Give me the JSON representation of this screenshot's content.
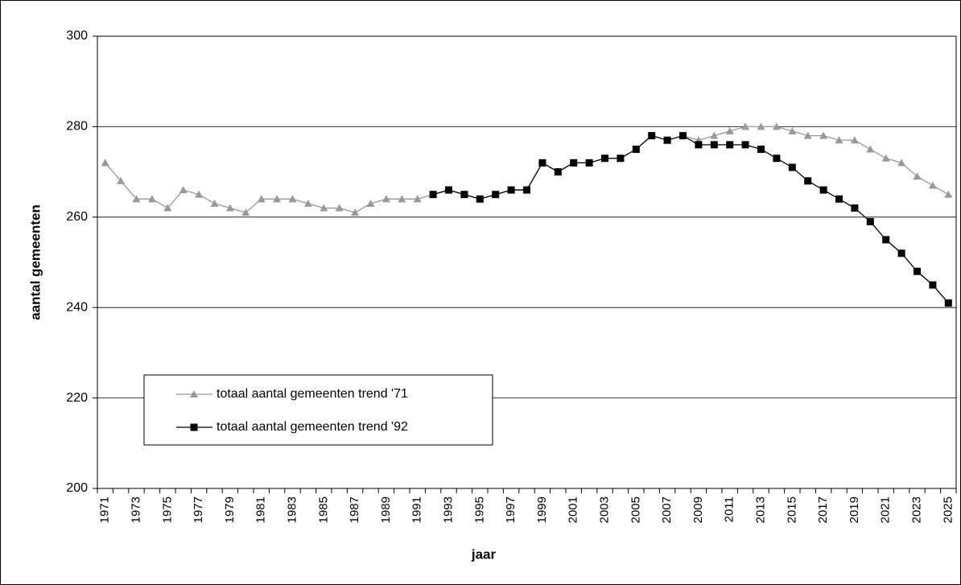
{
  "chart_data": {
    "type": "line",
    "x_label": "jaar",
    "y_label": "aantal gemeenten",
    "categories": [
      "1971",
      null,
      "1973",
      null,
      "1975",
      null,
      "1977",
      null,
      "1979",
      null,
      "1981",
      null,
      "1983",
      null,
      "1985",
      null,
      "1987",
      null,
      "1989",
      null,
      "1991",
      null,
      "1993",
      null,
      "1995",
      null,
      "1997",
      null,
      "1999",
      null,
      "2001",
      null,
      "2003",
      null,
      "2005",
      null,
      "2007",
      null,
      "2009",
      null,
      "2011",
      null,
      "2013",
      null,
      "2015",
      null,
      "2017",
      null,
      "2019",
      null,
      "2021",
      null,
      "2023",
      null,
      "2025"
    ],
    "series": [
      {
        "name": "totaal aantal gemeenten trend '71",
        "color": "#999999",
        "marker": "triangle",
        "values": [
          272,
          268,
          264,
          264,
          262,
          266,
          265,
          263,
          262,
          261,
          264,
          264,
          264,
          263,
          262,
          262,
          261,
          263,
          264,
          264,
          264,
          265,
          266,
          265,
          264,
          265,
          266,
          266,
          272,
          270,
          272,
          272,
          273,
          273,
          275,
          278,
          277,
          278,
          277,
          278,
          279,
          280,
          280,
          280,
          279,
          278,
          278,
          277,
          277,
          275,
          273,
          272,
          269,
          267,
          265
        ]
      },
      {
        "name": "totaal aantal gemeenten trend '92",
        "color": "#000000",
        "marker": "square",
        "values": [
          null,
          null,
          null,
          null,
          null,
          null,
          null,
          null,
          null,
          null,
          null,
          null,
          null,
          null,
          null,
          null,
          null,
          null,
          null,
          null,
          null,
          265,
          266,
          265,
          264,
          265,
          266,
          266,
          272,
          270,
          272,
          272,
          273,
          273,
          275,
          278,
          277,
          278,
          276,
          276,
          276,
          276,
          275,
          273,
          271,
          268,
          266,
          264,
          262,
          259,
          255,
          252,
          248,
          245,
          241
        ]
      }
    ],
    "ylim": [
      200,
      300
    ],
    "yticks": [
      200,
      220,
      240,
      260,
      280,
      300
    ],
    "grid": true,
    "legend": "lower left"
  }
}
